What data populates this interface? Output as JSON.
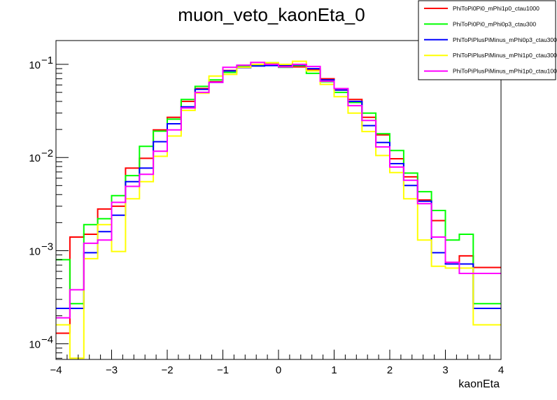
{
  "chart_data": {
    "type": "line",
    "style": "step-histogram",
    "title": "muon_veto_kaonEta_0",
    "xlabel": "kaonEta",
    "ylabel": "",
    "xlim": [
      -4,
      4
    ],
    "ylim": [
      6.8e-05,
      0.18
    ],
    "yscale": "log",
    "grid": false,
    "legend_position": "top-right",
    "x_ticks": [
      {
        "value": -4,
        "label": "−4"
      },
      {
        "value": -3,
        "label": "−3"
      },
      {
        "value": -2,
        "label": "−2"
      },
      {
        "value": -1,
        "label": "−1"
      },
      {
        "value": 0,
        "label": "0"
      },
      {
        "value": 1,
        "label": "1"
      },
      {
        "value": 2,
        "label": "2"
      },
      {
        "value": 3,
        "label": "3"
      },
      {
        "value": 4,
        "label": "4"
      }
    ],
    "y_ticks": [
      {
        "value": 0.0001,
        "base": "10",
        "exp": "−4"
      },
      {
        "value": 0.001,
        "base": "10",
        "exp": "−3"
      },
      {
        "value": 0.01,
        "base": "10",
        "exp": "−2"
      },
      {
        "value": 0.1,
        "base": "10",
        "exp": "−1"
      }
    ],
    "bin_edges": [
      -4.0,
      -3.75,
      -3.5,
      -3.25,
      -3.0,
      -2.75,
      -2.5,
      -2.25,
      -2.0,
      -1.75,
      -1.5,
      -1.25,
      -1.0,
      -0.75,
      -0.5,
      -0.25,
      0.0,
      0.25,
      0.5,
      0.75,
      1.0,
      1.25,
      1.5,
      1.75,
      2.0,
      2.25,
      2.5,
      2.75,
      3.0,
      3.25,
      3.5,
      3.75,
      4.0
    ],
    "series": [
      {
        "name": "PhiToPi0Pi0_mPhi1p0_ctau1000",
        "color": "#ff0000",
        "values": [
          0.00013,
          0.0014,
          0.0015,
          0.0028,
          0.003,
          0.0077,
          0.0098,
          0.0198,
          0.027,
          0.04,
          0.055,
          0.065,
          0.086,
          0.096,
          0.098,
          0.102,
          0.096,
          0.094,
          0.088,
          0.07,
          0.053,
          0.042,
          0.027,
          0.0175,
          0.0097,
          0.0062,
          0.0035,
          0.0021,
          0.00075,
          0.00088,
          0.00066,
          0.00066
        ]
      },
      {
        "name": "PhiToPi0Pi0_mPhi0p3_ctau300",
        "color": "#00ff00",
        "values": [
          0.0008,
          0.00027,
          0.0019,
          0.0022,
          0.0039,
          0.0064,
          0.0132,
          0.0192,
          0.0258,
          0.042,
          0.058,
          0.068,
          0.082,
          0.096,
          0.099,
          0.104,
          0.093,
          0.097,
          0.08,
          0.065,
          0.05,
          0.039,
          0.03,
          0.018,
          0.0119,
          0.0068,
          0.0043,
          0.0027,
          0.0013,
          0.0015,
          0.00027,
          0.00027
        ]
      },
      {
        "name": "PhiToPiPlusPiMinus_mPhi0p3_ctau300",
        "color": "#0000ff",
        "values": [
          0.00024,
          0.00024,
          0.00095,
          0.0016,
          0.0024,
          0.0055,
          0.0077,
          0.0148,
          0.023,
          0.035,
          0.054,
          0.064,
          0.085,
          0.092,
          0.096,
          0.097,
          0.098,
          0.099,
          0.09,
          0.068,
          0.053,
          0.04,
          0.022,
          0.0145,
          0.0086,
          0.005,
          0.0034,
          0.00095,
          0.00072,
          0.00072,
          0.00024,
          0.00024
        ]
      },
      {
        "name": "PhiToPiPlusPiMinus_mPhi1p0_ctau300",
        "color": "#ffff00",
        "values": [
          0.00016,
          7e-05,
          0.00082,
          0.0019,
          0.00098,
          0.0036,
          0.0055,
          0.0103,
          0.017,
          0.032,
          0.049,
          0.075,
          0.078,
          0.093,
          0.1,
          0.104,
          0.1,
          0.108,
          0.085,
          0.061,
          0.045,
          0.03,
          0.019,
          0.0105,
          0.0069,
          0.0036,
          0.0013,
          0.00068,
          0.00065,
          0.00065,
          0.00016,
          0.00016
        ]
      },
      {
        "name": "PhiToPiPlusPiMinus_mPhi1p0_ctau1000",
        "color": "#ff00ff",
        "values": [
          0.00019,
          0.00038,
          0.0012,
          0.0013,
          0.0033,
          0.0049,
          0.0066,
          0.0117,
          0.0198,
          0.034,
          0.05,
          0.064,
          0.093,
          0.098,
          0.105,
          0.1,
          0.094,
          0.1,
          0.095,
          0.066,
          0.055,
          0.036,
          0.025,
          0.013,
          0.0079,
          0.0057,
          0.0032,
          0.0014,
          0.00075,
          0.00057,
          0.00057,
          0.00057
        ]
      }
    ]
  }
}
